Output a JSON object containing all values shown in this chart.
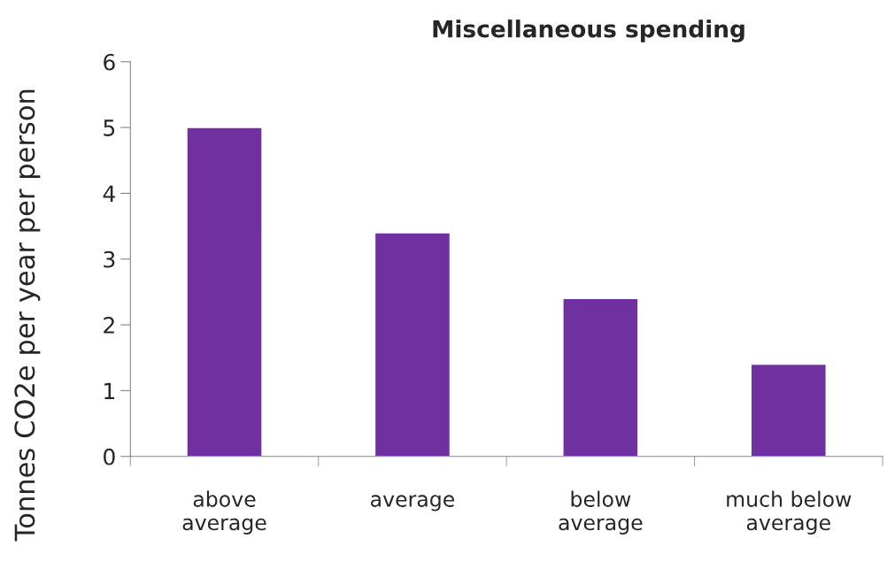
{
  "chart_data": {
    "type": "bar",
    "title": "Miscellaneous spending",
    "ylabel": "Tonnes CO2e per year per person",
    "categories": [
      "above\naverage",
      "average",
      "below\naverage",
      "much below\naverage"
    ],
    "values": [
      5,
      3.4,
      2.4,
      1.4
    ],
    "color": "#7030a0",
    "ylim": [
      0,
      6
    ],
    "yticks": [
      0,
      1,
      2,
      3,
      4,
      5,
      6
    ],
    "grid": false,
    "legend": false
  }
}
